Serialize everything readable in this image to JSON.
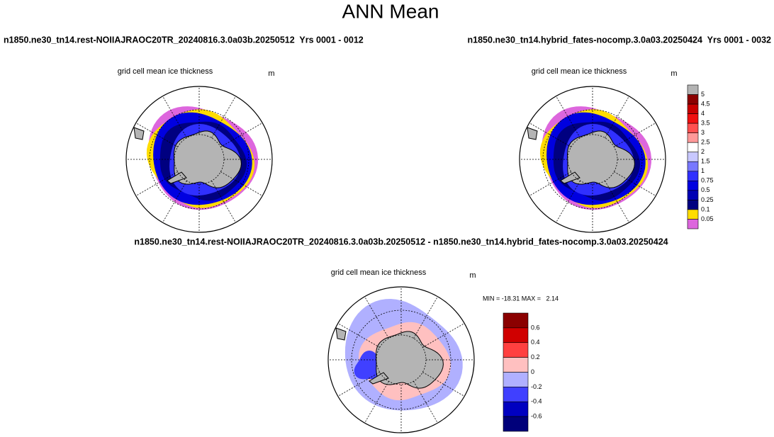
{
  "title": "ANN Mean",
  "panels": [
    {
      "header": "n1850.ne30_tn14.rest-NOIIAJRAOC20TR_20240816.3.0a03b.20250512  Yrs 0001 - 0012",
      "subtitle": "grid cell mean ice thickness",
      "units": "m"
    },
    {
      "header": "n1850.ne30_tn14.hybrid_fates-nocomp.3.0a03.20250424  Yrs 0001 - 0032",
      "subtitle": "grid cell mean ice thickness",
      "units": "m"
    }
  ],
  "colorbar": {
    "labels": [
      5,
      4.5,
      4,
      3.5,
      3,
      2.5,
      2,
      1.5,
      1,
      0.75,
      0.5,
      0.25,
      0.1,
      0.05
    ],
    "colors": [
      "#b3b3b3",
      "#8b0000",
      "#c80000",
      "#f01010",
      "#ff5050",
      "#ff9999",
      "#ffffff",
      "#c8c8ff",
      "#7878ff",
      "#3030ff",
      "#0000e0",
      "#0000b4",
      "#000080",
      "#ffdd00",
      "#dd66dd"
    ]
  },
  "diff": {
    "header": "n1850.ne30_tn14.rest-NOIIAJRAOC20TR_20240816.3.0a03b.20250512 - n1850.ne30_tn14.hybrid_fates-nocomp.3.0a03.20250424",
    "subtitle": "grid cell mean ice thickness",
    "units": "m",
    "stats": "MIN = -18.31 MAX =   2.14",
    "colorbar": {
      "labels": [
        0.6,
        0.4,
        0.2,
        0,
        -0.2,
        -0.4,
        -0.6
      ],
      "colors": [
        "#8b0000",
        "#d00000",
        "#ff4040",
        "#ffc0c0",
        "#b0b0ff",
        "#4040ff",
        "#0000c0",
        "#00007a"
      ]
    }
  }
}
